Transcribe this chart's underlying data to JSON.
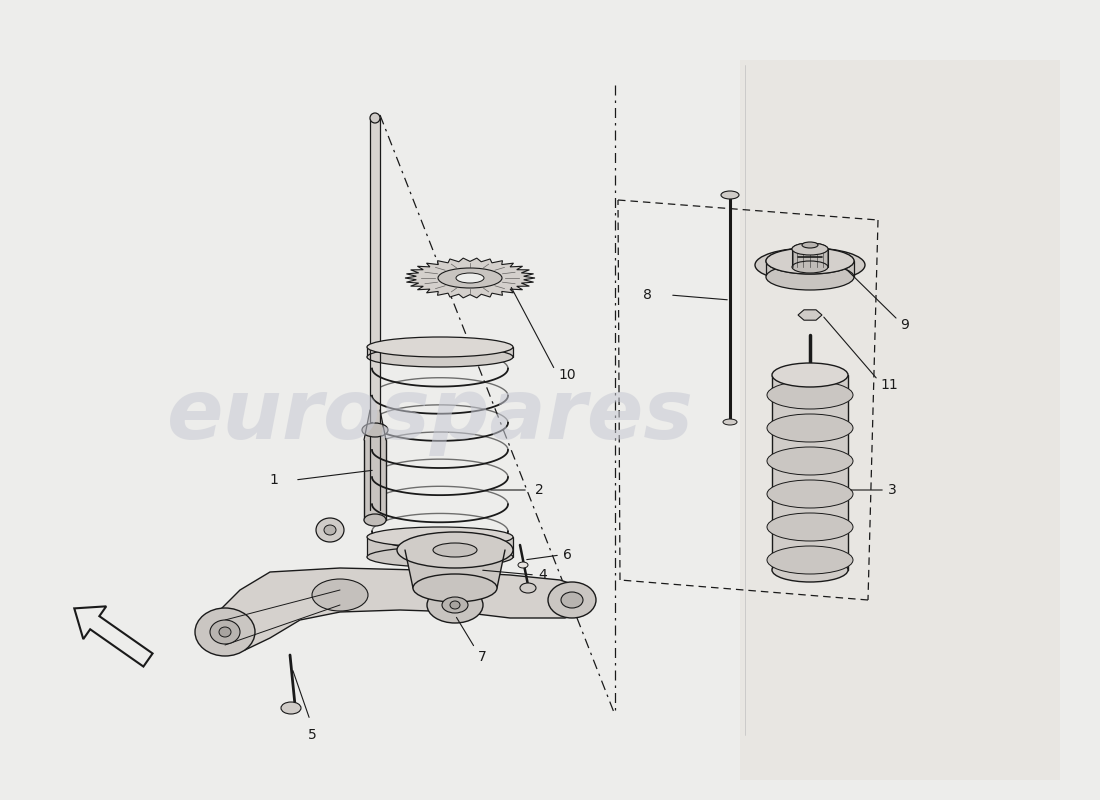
{
  "background_color": "#ededeb",
  "line_color": "#1a1a1a",
  "fill_light": "#e8e4e0",
  "fill_mid": "#d0ccc8",
  "fill_dark": "#b8b4b0",
  "watermark_text": "eurospares",
  "watermark_color": "#c8cad4",
  "watermark_alpha": 0.55,
  "part_numbers": [
    "1",
    "2",
    "3",
    "4",
    "5",
    "6",
    "7",
    "8",
    "9",
    "10",
    "11"
  ],
  "font_size": 10
}
